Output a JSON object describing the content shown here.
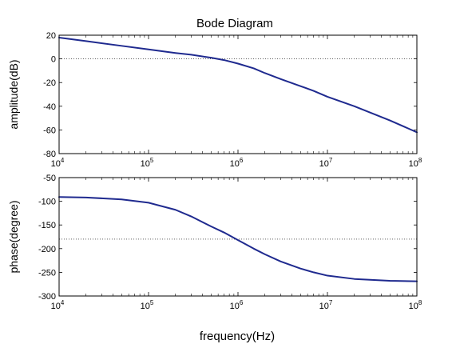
{
  "chart_data": [
    {
      "type": "line",
      "title": "Bode Diagram",
      "ylabel": "amplitude(dB)",
      "xlabel": "",
      "xscale": "log",
      "xlim": [
        10000,
        100000000
      ],
      "ylim": [
        -80,
        20
      ],
      "yticks": [
        20,
        0,
        -20,
        -40,
        -60,
        -80
      ],
      "xticks": [
        {
          "base": "10",
          "exp": "4"
        },
        {
          "base": "10",
          "exp": "5"
        },
        {
          "base": "10",
          "exp": "6"
        },
        {
          "base": "10",
          "exp": "7"
        },
        {
          "base": "10",
          "exp": "8"
        }
      ],
      "reference_line_y": 0,
      "line_color": "#1f2a8f",
      "series": [
        {
          "x": [
            10000,
            20000,
            50000,
            100000,
            200000,
            300000,
            500000,
            700000,
            1000000,
            1500000,
            2000000,
            3000000,
            5000000,
            7000000,
            10000000,
            20000000,
            50000000,
            100000000
          ],
          "y": [
            18,
            15,
            11,
            8,
            5,
            3.5,
            1,
            -1,
            -4,
            -8,
            -12,
            -17,
            -23,
            -27,
            -32,
            -40,
            -52,
            -62
          ]
        }
      ]
    },
    {
      "type": "line",
      "title": "",
      "ylabel": "phase(degree)",
      "xlabel": "frequency(Hz)",
      "xscale": "log",
      "xlim": [
        10000,
        100000000
      ],
      "ylim": [
        -300,
        -50
      ],
      "yticks": [
        -50,
        -100,
        -150,
        -200,
        -250,
        -300
      ],
      "xticks": [
        {
          "base": "10",
          "exp": "4"
        },
        {
          "base": "10",
          "exp": "5"
        },
        {
          "base": "10",
          "exp": "6"
        },
        {
          "base": "10",
          "exp": "7"
        },
        {
          "base": "10",
          "exp": "8"
        }
      ],
      "reference_line_y": -180,
      "line_color": "#1f2a8f",
      "series": [
        {
          "x": [
            10000,
            20000,
            50000,
            100000,
            200000,
            300000,
            500000,
            700000,
            1000000,
            1500000,
            2000000,
            3000000,
            5000000,
            7000000,
            10000000,
            20000000,
            50000000,
            100000000
          ],
          "y": [
            -91,
            -92,
            -96,
            -103,
            -118,
            -132,
            -153,
            -166,
            -182,
            -200,
            -212,
            -227,
            -242,
            -250,
            -257,
            -264,
            -268,
            -269
          ]
        }
      ]
    }
  ]
}
